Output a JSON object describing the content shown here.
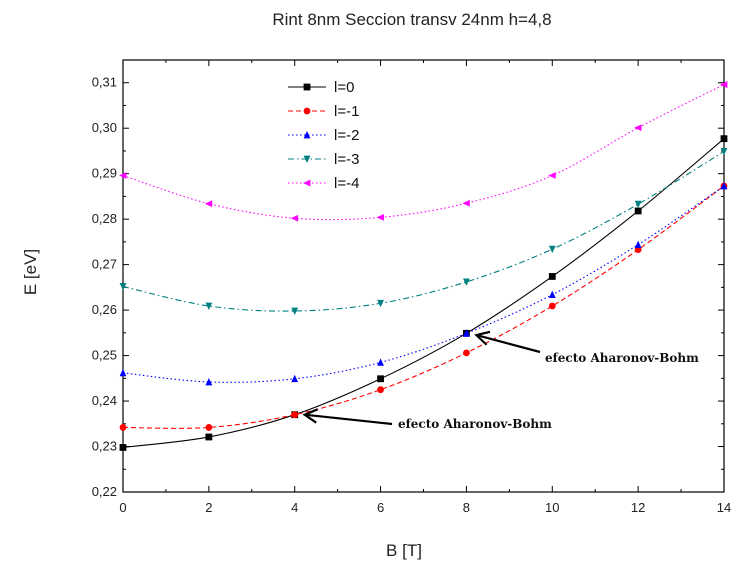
{
  "chart_data": {
    "type": "line",
    "title": "Rint 8nm Seccion transv 24nm h=4,8",
    "xlabel": "B [T]",
    "ylabel": "E [eV]",
    "xlim": [
      0,
      14
    ],
    "ylim": [
      0.22,
      0.315
    ],
    "xticks": [
      0,
      2,
      4,
      6,
      8,
      10,
      12,
      14
    ],
    "xtick_labels": [
      "0",
      "2",
      "4",
      "6",
      "8",
      "10",
      "12",
      "14"
    ],
    "yticks": [
      0.22,
      0.23,
      0.24,
      0.25,
      0.26,
      0.27,
      0.28,
      0.29,
      0.3,
      0.31
    ],
    "ytick_labels": [
      "0,22",
      "0,23",
      "0,24",
      "0,25",
      "0,26",
      "0,27",
      "0,28",
      "0,29",
      "0,30",
      "0,31"
    ],
    "grid": false,
    "legend_position": "top-left",
    "x": [
      0,
      2,
      4,
      6,
      8,
      10,
      12,
      14
    ],
    "series": [
      {
        "name": "l=0",
        "color": "#000000",
        "marker": "square",
        "dash": "solid",
        "values": [
          0.2298,
          0.2321,
          0.237,
          0.2449,
          0.2549,
          0.2674,
          0.2818,
          0.2977
        ]
      },
      {
        "name": "l=-1",
        "color": "#ff0000",
        "marker": "circle",
        "dash": "dashed",
        "values": [
          0.2342,
          0.2342,
          0.237,
          0.2425,
          0.2506,
          0.2609,
          0.2733,
          0.2873
        ]
      },
      {
        "name": "l=-2",
        "color": "#0000ff",
        "marker": "triangle-up",
        "dash": "dotted",
        "values": [
          0.2462,
          0.2442,
          0.2449,
          0.2485,
          0.2549,
          0.2634,
          0.2744,
          0.2873
        ]
      },
      {
        "name": "l=-3",
        "color": "#008080",
        "marker": "triangle-down",
        "dash": "dashdot",
        "values": [
          0.2652,
          0.2609,
          0.2598,
          0.2615,
          0.2662,
          0.2734,
          0.2833,
          0.2949
        ]
      },
      {
        "name": "l=-4",
        "color": "#ff00ff",
        "marker": "triangle-left",
        "dash": "dotted",
        "values": [
          0.2896,
          0.2834,
          0.2802,
          0.2804,
          0.2835,
          0.2896,
          0.3001,
          0.3096
        ]
      }
    ],
    "annotations": [
      {
        "text": "efecto Aharonov-Bohm",
        "x": 8,
        "y": 0.2545
      },
      {
        "text": "efecto Aharonov-Bohm",
        "x": 4,
        "y": 0.237
      }
    ]
  }
}
